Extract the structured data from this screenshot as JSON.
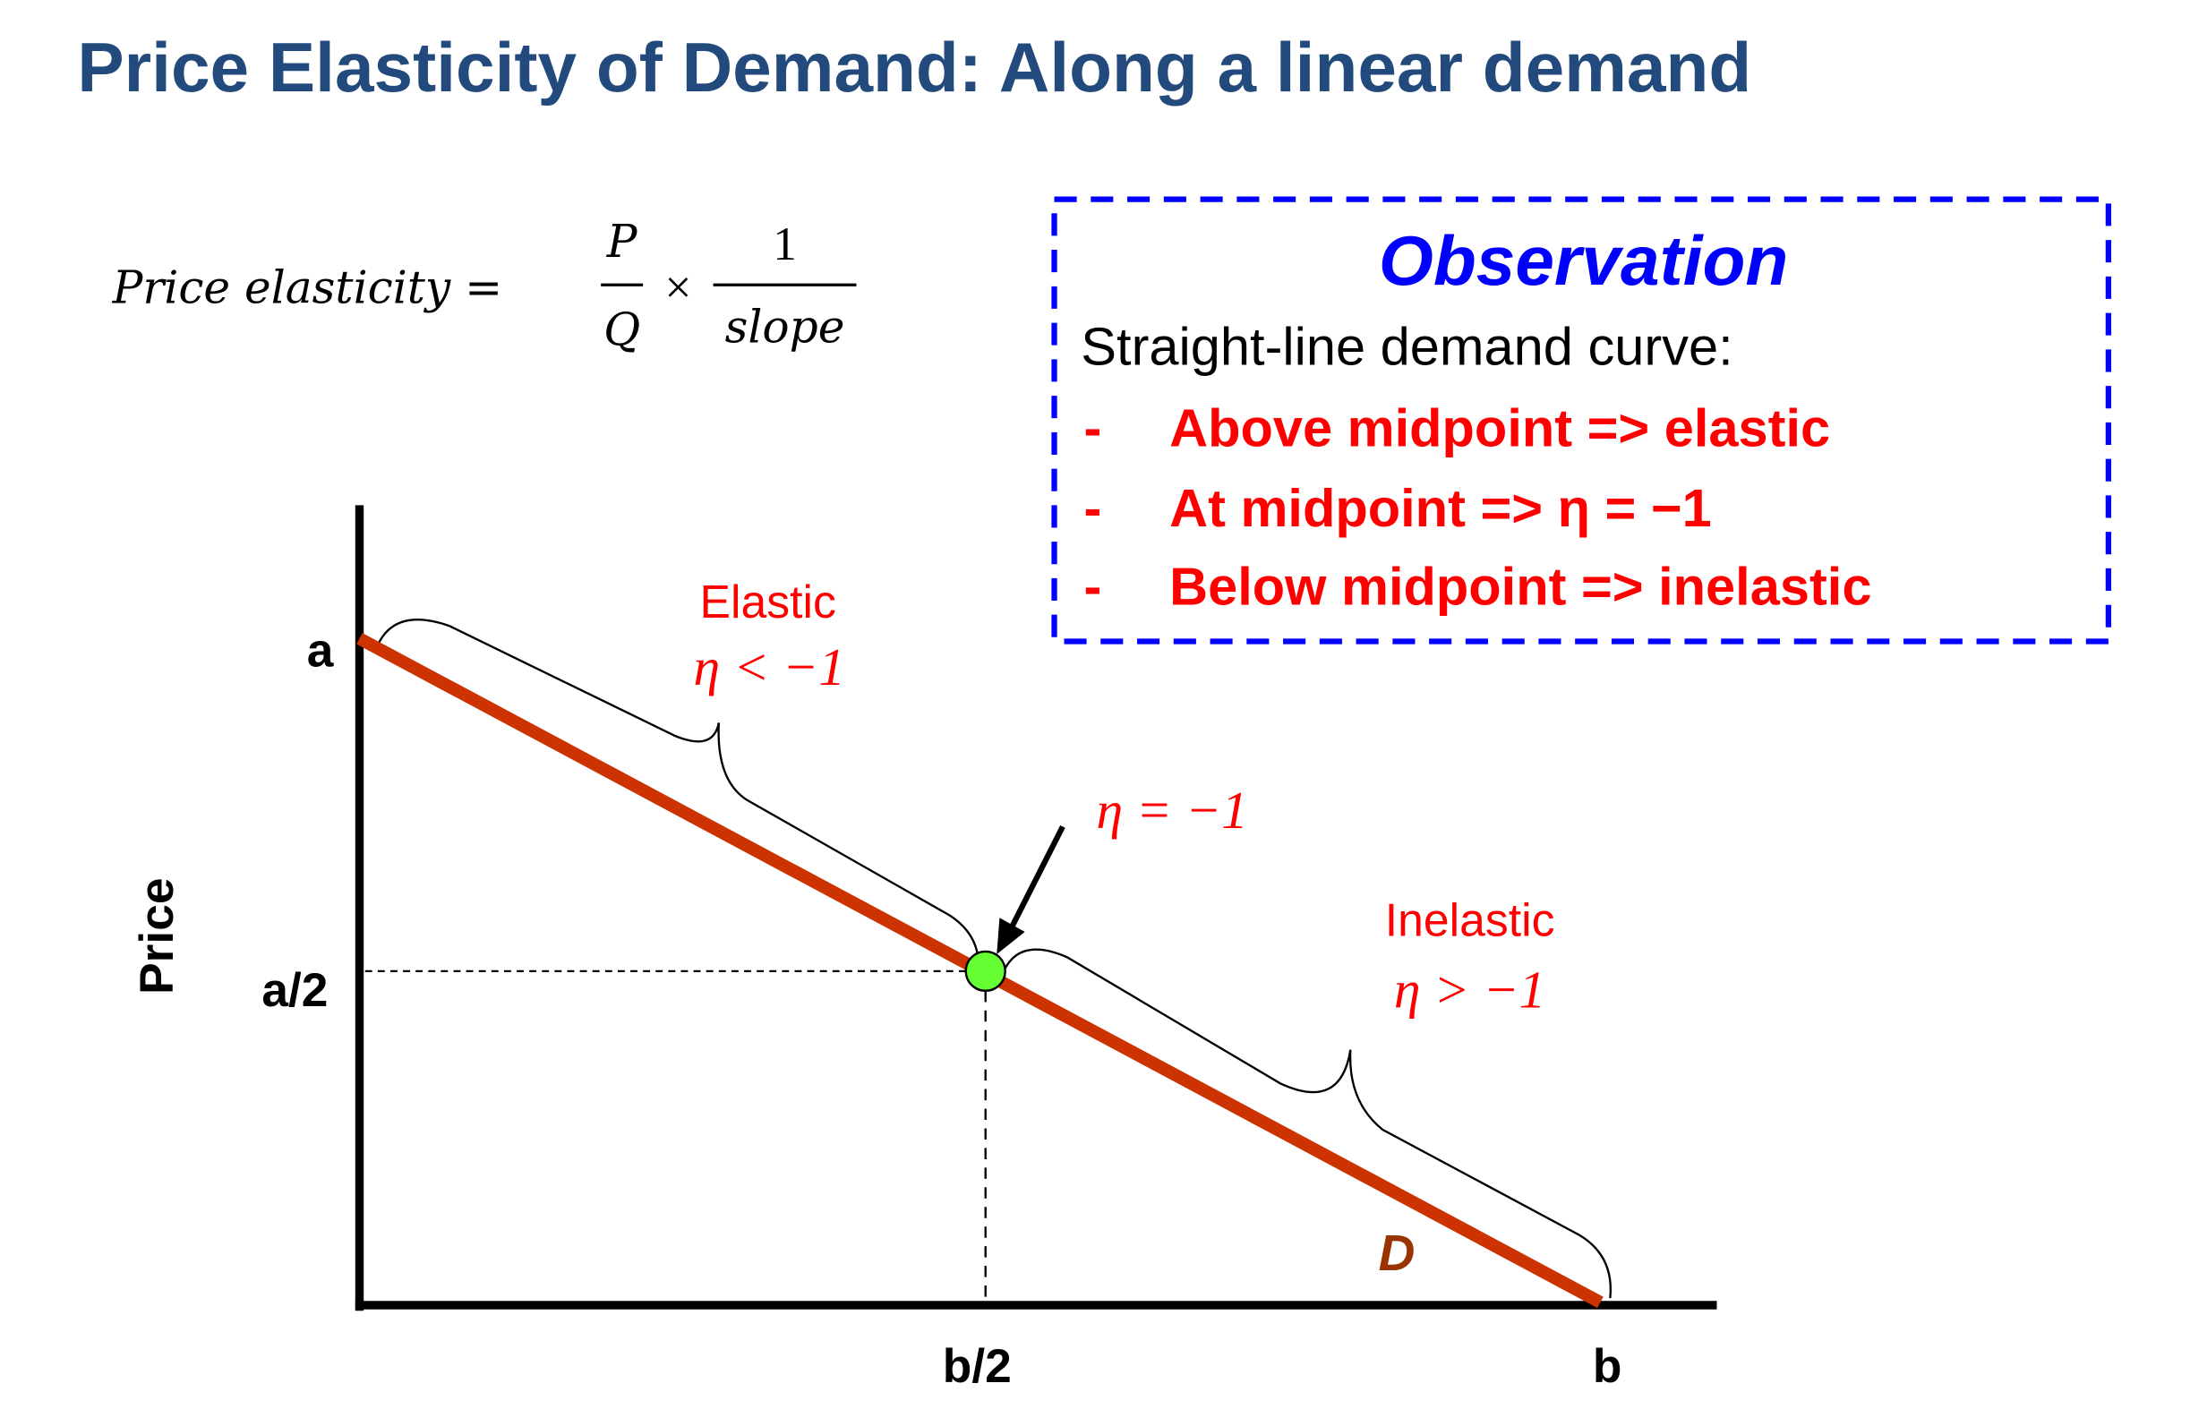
{
  "title": "Price Elasticity of Demand: Along a linear demand",
  "formula": {
    "lhs": "Price elasticity =",
    "numerator1": "P",
    "denominator1": "Q",
    "times": "×",
    "numerator2": "1",
    "denominator2": "slope"
  },
  "observation": {
    "heading": "Observation",
    "intro": "Straight-line demand curve:",
    "items": [
      {
        "bullet": "-",
        "text": "Above midpoint => elastic"
      },
      {
        "bullet": "-",
        "text": "At midpoint => η = −1"
      },
      {
        "bullet": "-",
        "text": "Below midpoint => inelastic"
      }
    ],
    "border_color": "#0000FF"
  },
  "diagram": {
    "y_axis_label": "Price",
    "y_ticks": [
      "a",
      "a/2"
    ],
    "x_ticks": [
      "b/2",
      "b"
    ],
    "curve_label": "D",
    "curve_color": "#CC3300",
    "midpoint_color": "#66FF33",
    "elastic": {
      "label": "Elastic",
      "condition": "η < −1"
    },
    "unit": {
      "condition": "η = −1"
    },
    "inelastic": {
      "label": "Inelastic",
      "condition": "η > −1"
    }
  }
}
